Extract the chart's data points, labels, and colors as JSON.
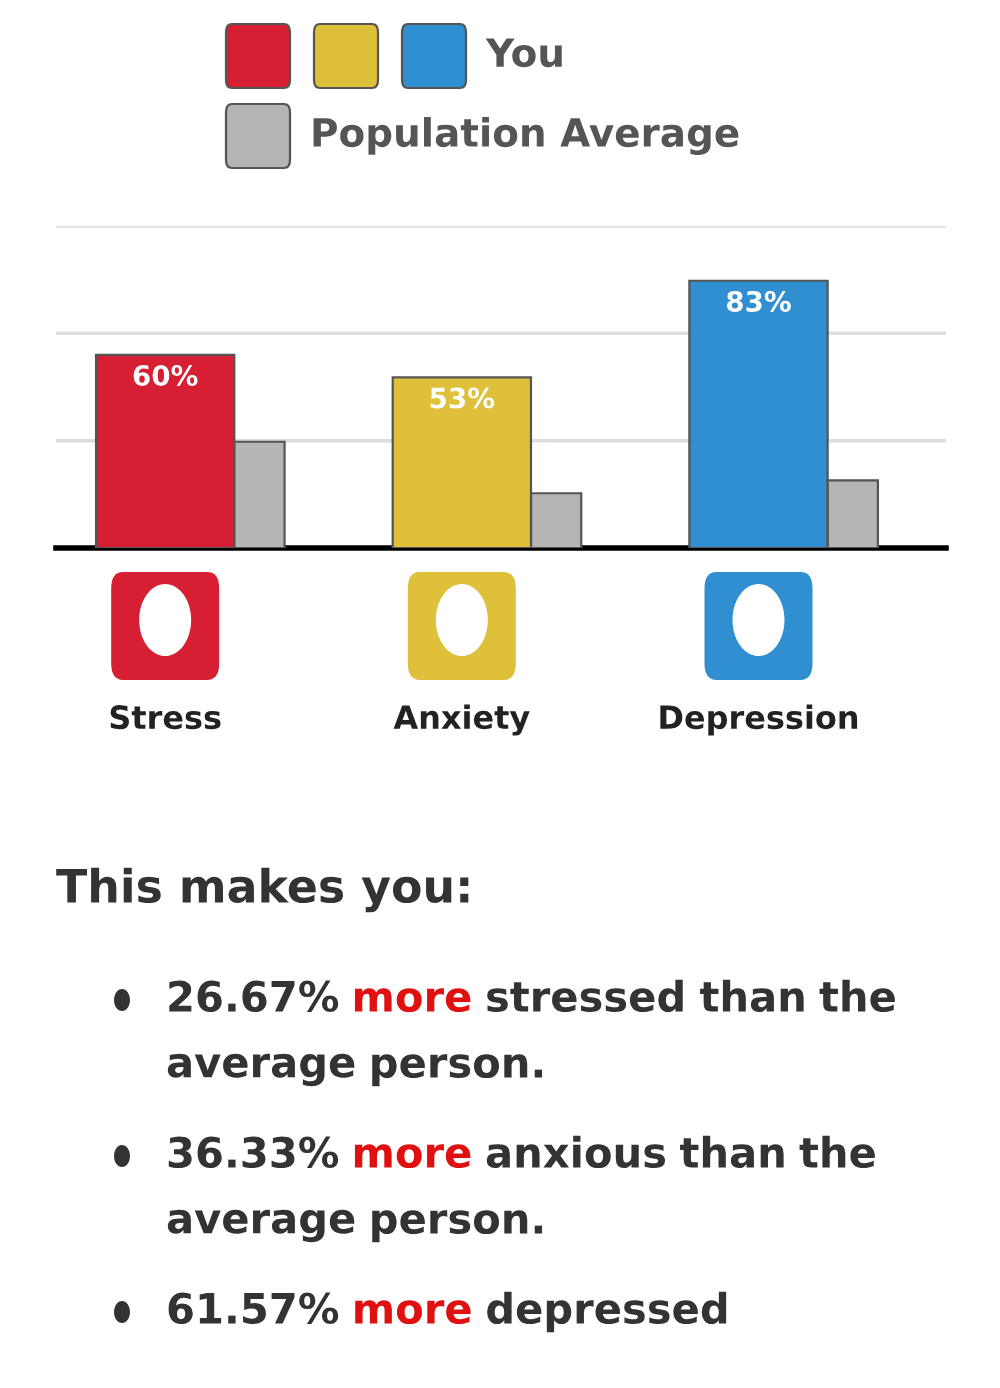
{
  "chart_data": {
    "type": "bar",
    "categories": [
      "Stress",
      "Anxiety",
      "Depression"
    ],
    "series": [
      {
        "name": "You",
        "colors": [
          "#d71f33",
          "#dfc03a",
          "#2f8fd0"
        ],
        "values": [
          60,
          53,
          83
        ],
        "value_labels": [
          "60%",
          "53%",
          "83%"
        ]
      },
      {
        "name": "Population Average",
        "color": "#b5b5b5",
        "values": [
          33,
          17,
          21
        ]
      }
    ],
    "ylim": [
      0,
      100
    ],
    "yticks": [
      {
        "value": 33.3,
        "label": null
      },
      {
        "value": 66.7,
        "label": null
      },
      {
        "value": 100,
        "label": null
      }
    ],
    "grid": "y",
    "legend": "top",
    "tick_labels": "x",
    "annotations": [
      "This makes you:",
      "26.67% more stressed than the average person.",
      "36.33% more anxious than the average person.",
      "61.57% more depressed"
    ]
  }
}
